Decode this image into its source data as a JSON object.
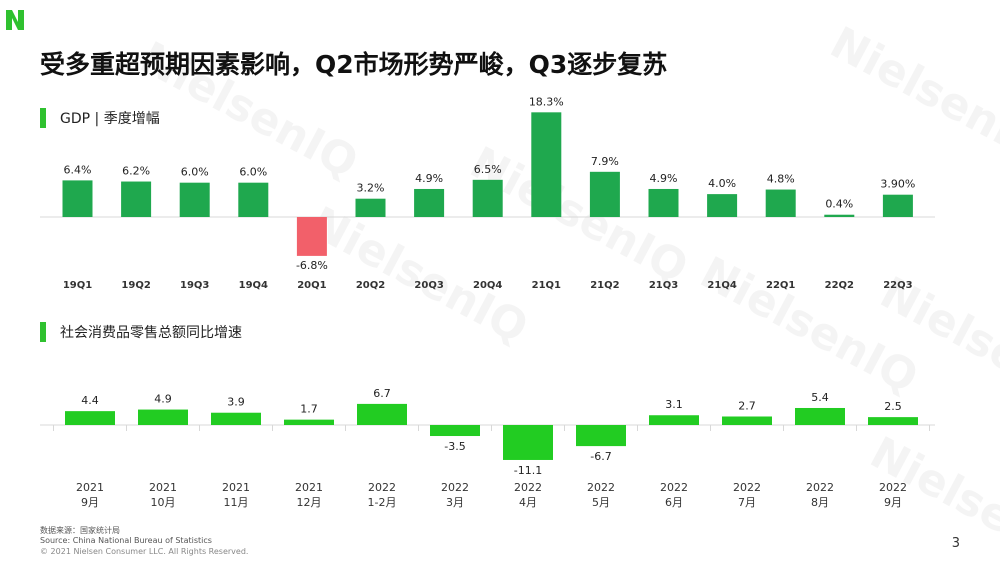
{
  "title": "受多重超预期因素影响，Q2市场形势严峻，Q3逐步复苏",
  "page_number": "3",
  "watermark": "NielsenIQ",
  "colors": {
    "accent": "#2fc12f",
    "gdp_bar": "#1fa84e",
    "negative_bar": "#f2606a",
    "retail_bar": "#22cc22"
  },
  "source": {
    "line1": "数据来源：国家统计局",
    "line2": "Source: China National Bureau of Statistics",
    "line3": "© 2021 Nielsen Consumer LLC. All Rights Reserved."
  },
  "chart_data": [
    {
      "type": "bar",
      "title": "GDP | 季度增幅",
      "categories": [
        "19Q1",
        "19Q2",
        "19Q3",
        "19Q4",
        "20Q1",
        "20Q2",
        "20Q3",
        "20Q4",
        "21Q1",
        "21Q2",
        "21Q3",
        "21Q4",
        "22Q1",
        "22Q2",
        "22Q3"
      ],
      "values": [
        6.4,
        6.2,
        6.0,
        6.0,
        -6.8,
        3.2,
        4.9,
        6.5,
        18.3,
        7.9,
        4.9,
        4.0,
        4.8,
        0.4,
        3.9
      ],
      "labels": [
        "6.4%",
        "6.2%",
        "6.0%",
        "6.0%",
        "-6.8%",
        "3.2%",
        "4.9%",
        "6.5%",
        "18.3%",
        "7.9%",
        "4.9%",
        "4.0%",
        "4.8%",
        "0.4%",
        "3.90%"
      ],
      "unit": "%"
    },
    {
      "type": "bar",
      "title": "社会消费品零售总额同比增速",
      "categories": [
        [
          "2021",
          "9月"
        ],
        [
          "2021",
          "10月"
        ],
        [
          "2021",
          "11月"
        ],
        [
          "2021",
          "12月"
        ],
        [
          "2022",
          "1-2月"
        ],
        [
          "2022",
          "3月"
        ],
        [
          "2022",
          "4月"
        ],
        [
          "2022",
          "5月"
        ],
        [
          "2022",
          "6月"
        ],
        [
          "2022",
          "7月"
        ],
        [
          "2022",
          "8月"
        ],
        [
          "2022",
          "9月"
        ]
      ],
      "values": [
        4.4,
        4.9,
        3.9,
        1.7,
        6.7,
        -3.5,
        -11.1,
        -6.7,
        3.1,
        2.7,
        5.4,
        2.5
      ],
      "labels": [
        "4.4",
        "4.9",
        "3.9",
        "1.7",
        "6.7",
        "-3.5",
        "-11.1",
        "-6.7",
        "3.1",
        "2.7",
        "5.4",
        "2.5"
      ]
    }
  ]
}
